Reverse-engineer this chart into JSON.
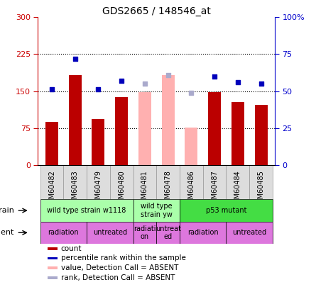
{
  "title": "GDS2665 / 148546_at",
  "samples": [
    "GSM60482",
    "GSM60483",
    "GSM60479",
    "GSM60480",
    "GSM60481",
    "GSM60478",
    "GSM60486",
    "GSM60487",
    "GSM60484",
    "GSM60485"
  ],
  "count_values": [
    88,
    183,
    93,
    138,
    null,
    null,
    null,
    148,
    128,
    122
  ],
  "count_absent": [
    null,
    null,
    null,
    null,
    148,
    183,
    76,
    null,
    null,
    null
  ],
  "rank_values_pct": [
    51,
    72,
    51,
    57,
    null,
    null,
    null,
    60,
    56,
    55
  ],
  "rank_absent_pct": [
    null,
    null,
    null,
    null,
    55,
    61,
    49,
    null,
    null,
    null
  ],
  "count_color": "#bb0000",
  "count_absent_color": "#ffb0b0",
  "rank_color": "#0000bb",
  "rank_absent_color": "#aaaacc",
  "ylim_left": [
    0,
    300
  ],
  "ylim_right": [
    0,
    100
  ],
  "yticks_left": [
    0,
    75,
    150,
    225,
    300
  ],
  "yticks_right": [
    0,
    25,
    50,
    75,
    100
  ],
  "ytick_labels_left": [
    "0",
    "75",
    "150",
    "225",
    "300"
  ],
  "ytick_labels_right": [
    "0",
    "25",
    "50",
    "75",
    "100%"
  ],
  "strain_groups": [
    {
      "label": "wild type strain w1118",
      "start": 0,
      "end": 4,
      "color": "#aaffaa"
    },
    {
      "label": "wild type\nstrain yw",
      "start": 4,
      "end": 6,
      "color": "#aaffaa"
    },
    {
      "label": "p53 mutant",
      "start": 6,
      "end": 10,
      "color": "#44dd44"
    }
  ],
  "agent_groups": [
    {
      "label": "radiation",
      "start": 0,
      "end": 2,
      "color": "#dd77dd"
    },
    {
      "label": "untreated",
      "start": 2,
      "end": 4,
      "color": "#dd77dd"
    },
    {
      "label": "radiati\non",
      "start": 4,
      "end": 5,
      "color": "#dd77dd"
    },
    {
      "label": "untreat\ned",
      "start": 5,
      "end": 6,
      "color": "#dd77dd"
    },
    {
      "label": "radiation",
      "start": 6,
      "end": 8,
      "color": "#dd77dd"
    },
    {
      "label": "untreated",
      "start": 8,
      "end": 10,
      "color": "#dd77dd"
    }
  ],
  "legend_items": [
    {
      "label": "count",
      "color": "#bb0000"
    },
    {
      "label": "percentile rank within the sample",
      "color": "#0000bb"
    },
    {
      "label": "value, Detection Call = ABSENT",
      "color": "#ffb0b0"
    },
    {
      "label": "rank, Detection Call = ABSENT",
      "color": "#aaaacc"
    }
  ],
  "bar_width": 0.55,
  "dotted_yticks": [
    75,
    150,
    225
  ],
  "left_yaxis_color": "#cc0000",
  "right_yaxis_color": "#0000cc",
  "col_bg_color": "#dddddd",
  "col_border_color": "#999999"
}
